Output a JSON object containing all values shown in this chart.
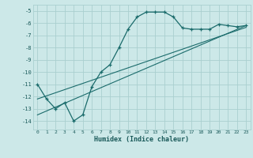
{
  "xlabel": "Humidex (Indice chaleur)",
  "background_color": "#cce8e8",
  "grid_color": "#aacfcf",
  "line_color": "#1a6b6b",
  "xlim": [
    -0.5,
    23.5
  ],
  "ylim": [
    -14.7,
    -4.5
  ],
  "xticks": [
    0,
    1,
    2,
    3,
    4,
    5,
    6,
    7,
    8,
    9,
    10,
    11,
    12,
    13,
    14,
    15,
    16,
    17,
    18,
    19,
    20,
    21,
    22,
    23
  ],
  "yticks": [
    -14,
    -13,
    -12,
    -11,
    -10,
    -9,
    -8,
    -7,
    -6,
    -5
  ],
  "curve1_x": [
    0,
    1,
    2,
    3,
    4,
    5,
    6,
    7,
    8,
    9,
    10,
    11,
    12,
    13,
    14,
    15,
    16,
    17,
    18,
    19,
    20,
    21,
    22,
    23
  ],
  "curve1_y": [
    -11,
    -12.2,
    -13,
    -12.5,
    -14,
    -13.5,
    -11.2,
    -10,
    -9.4,
    -8,
    -6.5,
    -5.5,
    -5.1,
    -5.1,
    -5.1,
    -5.5,
    -6.4,
    -6.5,
    -6.5,
    -6.5,
    -6.1,
    -6.2,
    -6.3,
    -6.2
  ],
  "curve2_x": [
    0,
    23
  ],
  "curve2_y": [
    -13.5,
    -6.2
  ],
  "curve3_x": [
    0,
    23
  ],
  "curve3_y": [
    -12.2,
    -6.35
  ]
}
